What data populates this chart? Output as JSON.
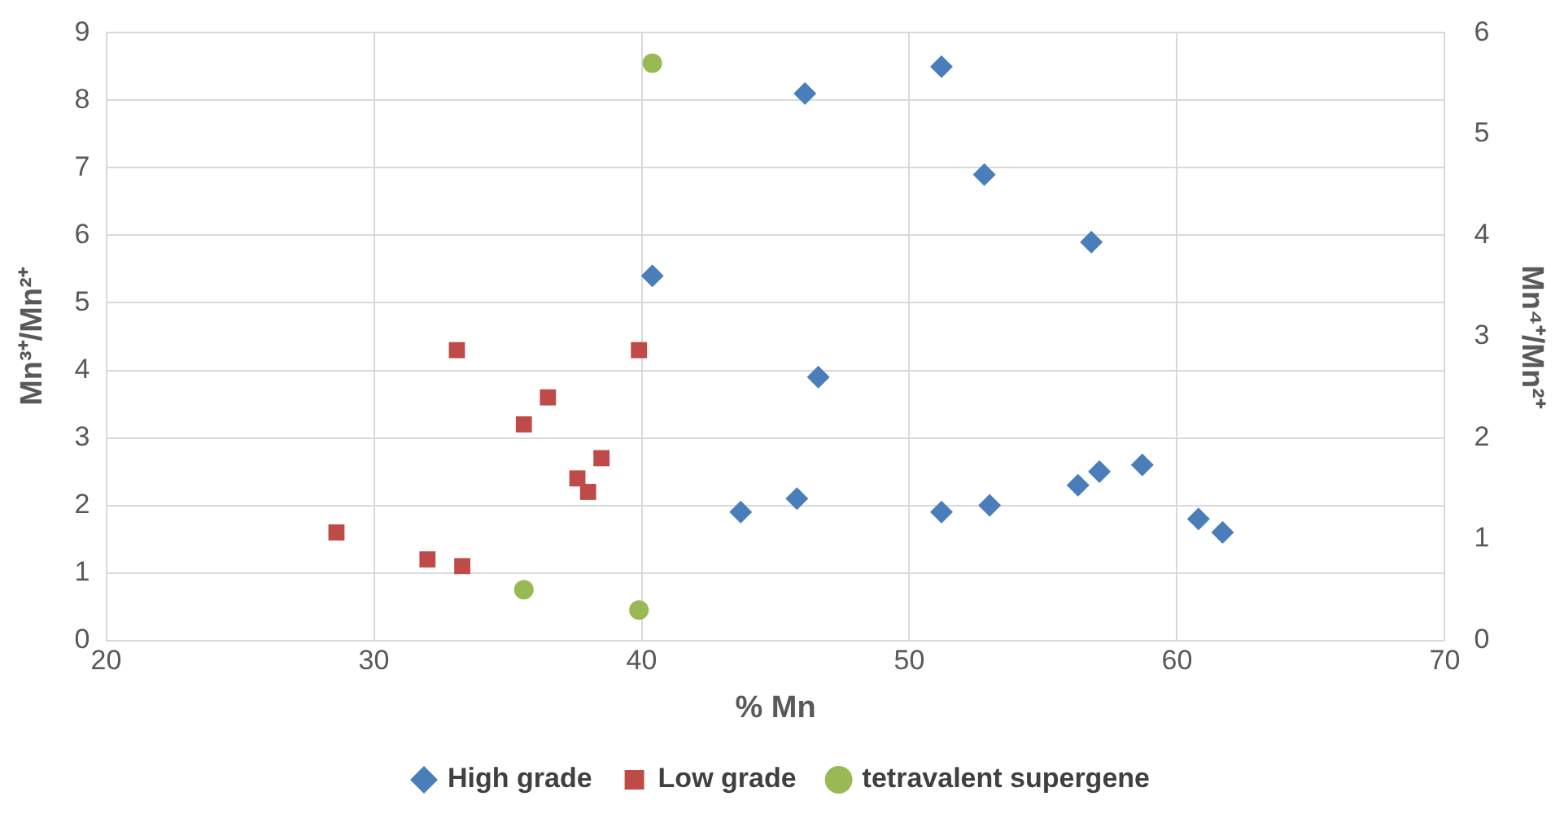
{
  "chart_data": {
    "type": "scatter",
    "xlabel": "% Mn",
    "ylabel": "Mn³⁺/Mn²⁺",
    "y2label": "Mn⁴⁺/Mn²⁺",
    "xlim": [
      20,
      70
    ],
    "xticks": [
      20,
      30,
      40,
      50,
      60,
      70
    ],
    "ylim": [
      0,
      9
    ],
    "yticks": [
      0,
      1,
      2,
      3,
      4,
      5,
      6,
      7,
      8,
      9
    ],
    "y2lim": [
      0,
      6
    ],
    "y2ticks": [
      0,
      1,
      2,
      3,
      4,
      5,
      6
    ],
    "grid": true,
    "legend": "bottom",
    "series": [
      {
        "name": "High grade",
        "color": "#4a7ebb",
        "marker": "diamond",
        "x": [
          46.1,
          51.2,
          52.8,
          56.8,
          40.4,
          46.6,
          43.7,
          45.8,
          51.2,
          53.0,
          56.3,
          57.1,
          58.7,
          60.8,
          61.7
        ],
        "values": [
          8.1,
          8.5,
          6.9,
          5.9,
          5.4,
          3.9,
          1.9,
          2.1,
          1.9,
          2.0,
          2.3,
          2.5,
          2.6,
          1.8,
          1.6
        ]
      },
      {
        "name": "Low grade",
        "color": "#be4b48",
        "marker": "square",
        "x": [
          28.6,
          33.1,
          32.0,
          33.3,
          35.6,
          36.5,
          37.6,
          38.0,
          38.5,
          39.9
        ],
        "values": [
          1.6,
          4.3,
          1.2,
          1.1,
          3.2,
          3.6,
          2.4,
          2.2,
          2.7,
          4.3
        ]
      },
      {
        "name": "tetravalent supergene",
        "color": "#98b954",
        "marker": "circle",
        "axis": "y2",
        "x": [
          40.4,
          35.6,
          39.9
        ],
        "values": [
          5.7,
          0.5,
          0.3
        ]
      }
    ]
  }
}
